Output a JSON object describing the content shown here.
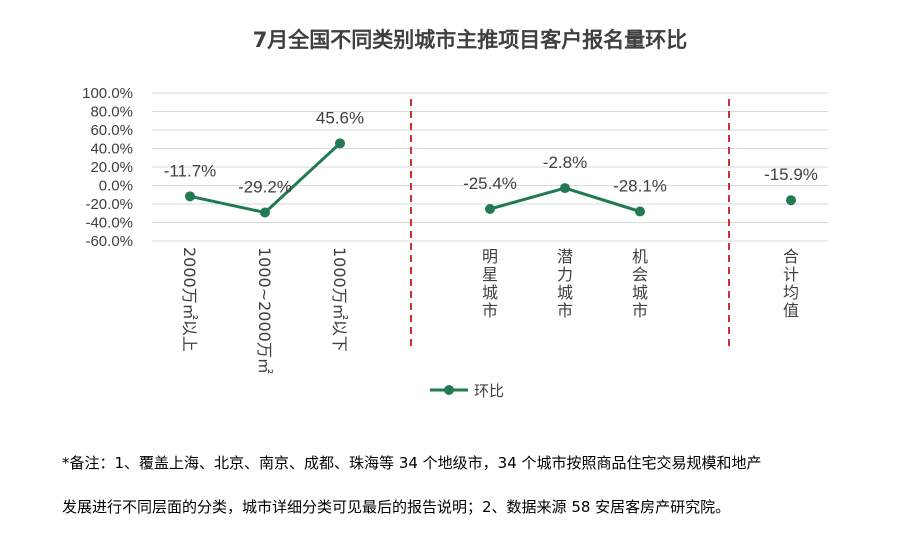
{
  "chart_data": {
    "type": "line",
    "title": "7月全国不同类别城市主推项目客户报名量环比",
    "categories": [
      "2000万㎡以上",
      "1000~2000万㎡",
      "1000万㎡以下",
      "明星城市",
      "潜力城市",
      "机会城市",
      "合计均值"
    ],
    "series": [
      {
        "name": "环比",
        "color": "#217a52",
        "values": [
          -11.7,
          -29.2,
          45.6,
          -25.4,
          -2.8,
          -28.1,
          -15.9
        ],
        "labels": [
          "-11.7%",
          "-29.2%",
          "45.6%",
          "-25.4%",
          "-2.8%",
          "-28.1%",
          "-15.9%"
        ]
      }
    ],
    "ylim": [
      -60,
      100
    ],
    "yticks": [
      "100.0%",
      "80.0%",
      "60.0%",
      "40.0%",
      "20.0%",
      "0.0%",
      "-20.0%",
      "-40.0%",
      "-60.0%"
    ],
    "grid": true,
    "legend": "bottom",
    "separator_color": "#c00000"
  },
  "notes": [
    "*备注：1、覆盖上海、北京、南京、成都、珠海等 34 个地级市，34 个城市按照商品住宅交易规模和地产",
    "发展进行不同层面的分类，城市详细分类可见最后的报告说明；2、数据来源 58 安居客房产研究院。"
  ]
}
